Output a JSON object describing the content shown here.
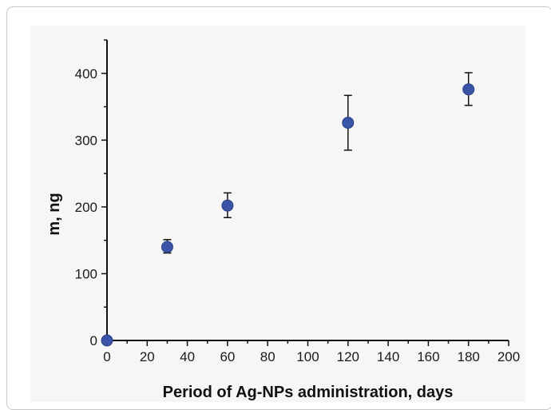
{
  "chart_data": {
    "type": "scatter",
    "title": "",
    "xlabel": "Period of Ag-NPs administration, days",
    "ylabel": "m, ng",
    "xlim": [
      0,
      200
    ],
    "ylim": [
      0,
      450
    ],
    "x_ticks": [
      0,
      20,
      40,
      60,
      80,
      100,
      120,
      140,
      160,
      180,
      200
    ],
    "y_ticks": [
      0,
      100,
      200,
      300,
      400
    ],
    "grid": false,
    "legend": "none",
    "marker_color": "#3a55a8",
    "error_bar_color": "#111111",
    "series": [
      {
        "points": [
          {
            "x": 0,
            "y": 0,
            "err_low": 0,
            "err_high": 0
          },
          {
            "x": 30,
            "y": 140,
            "err_low": 131,
            "err_high": 151
          },
          {
            "x": 60,
            "y": 202,
            "err_low": 184,
            "err_high": 221
          },
          {
            "x": 120,
            "y": 326,
            "err_low": 285,
            "err_high": 367
          },
          {
            "x": 180,
            "y": 376,
            "err_low": 352,
            "err_high": 401
          }
        ]
      }
    ]
  }
}
